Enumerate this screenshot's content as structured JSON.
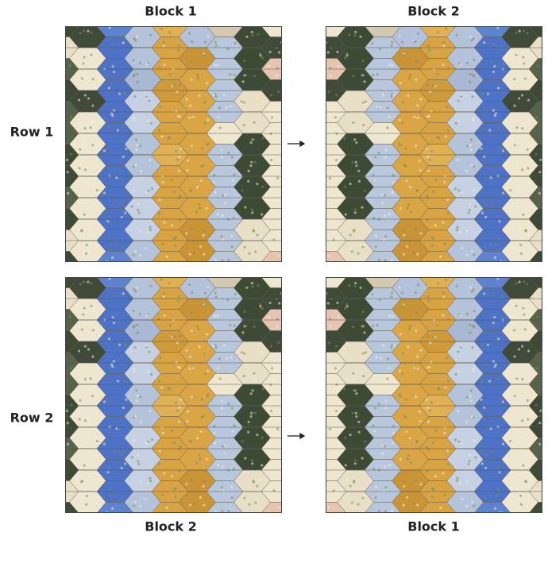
{
  "columns": {
    "top": [
      "Block 1",
      "Block 2"
    ],
    "bottom": [
      "Block 2",
      "Block 1"
    ]
  },
  "rows": [
    "Row 1",
    "Row 2"
  ]
}
